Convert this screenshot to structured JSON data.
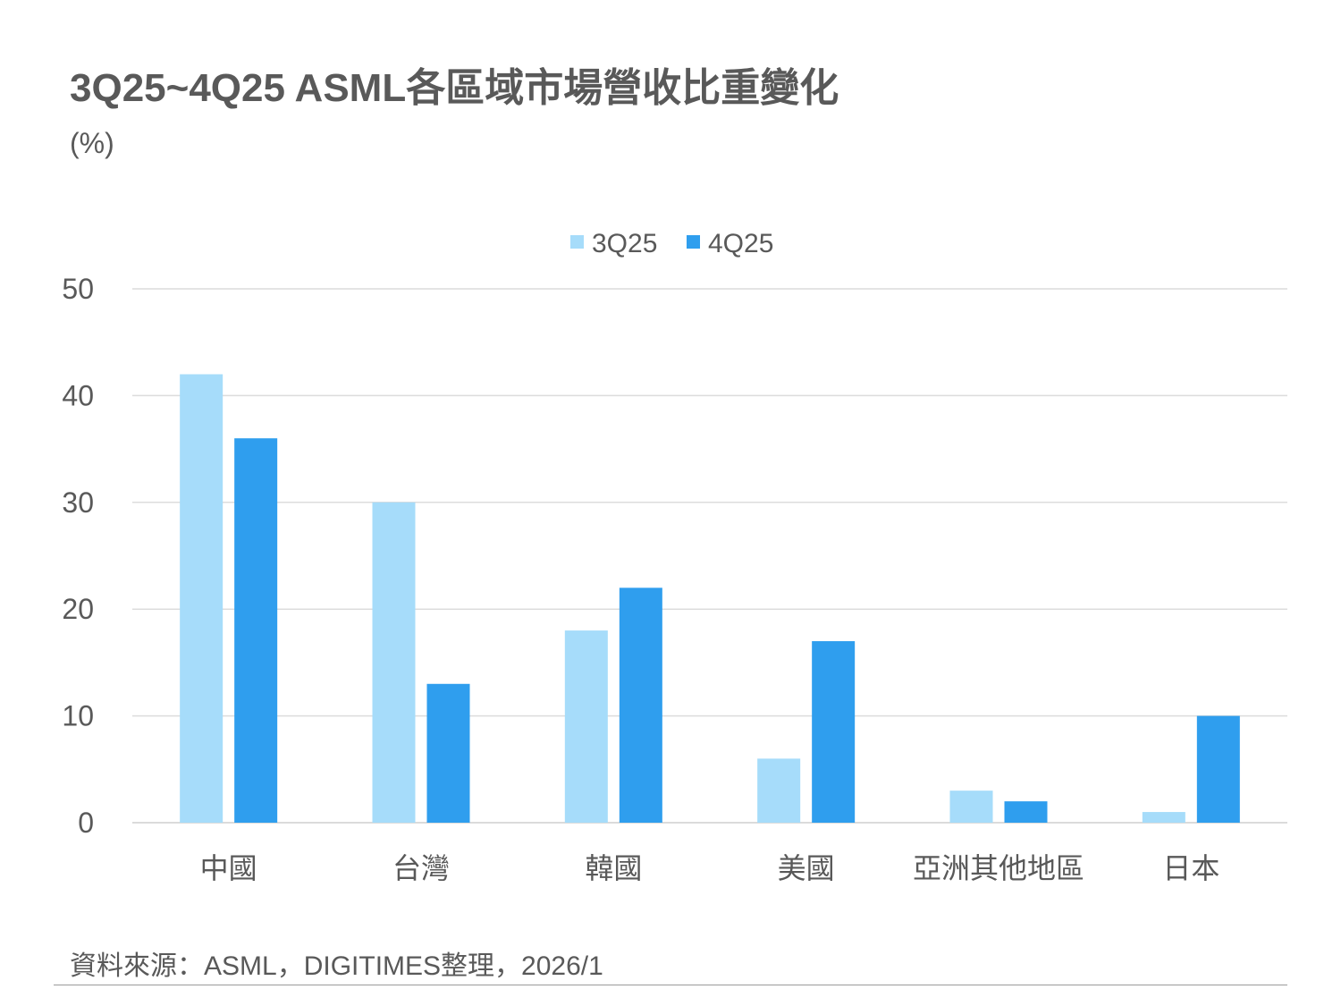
{
  "title": "3Q25~4Q25 ASML各區域市場營收比重變化",
  "unit": "(%)",
  "source": "資料來源：ASML，DIGITIMES整理，2026/1",
  "chart_data": {
    "type": "bar",
    "categories": [
      "中國",
      "台灣",
      "韓國",
      "美國",
      "亞洲其他地區",
      "日本"
    ],
    "series": [
      {
        "name": "3Q25",
        "color": "#a6dcfa",
        "values": [
          42,
          30,
          18,
          6,
          3,
          1
        ]
      },
      {
        "name": "4Q25",
        "color": "#2f9eee",
        "values": [
          36,
          13,
          22,
          17,
          2,
          10
        ]
      }
    ],
    "yticks": [
      "0",
      "10",
      "20",
      "30",
      "40",
      "50"
    ],
    "ylim": [
      0,
      50
    ],
    "grid": true,
    "legend": "top-center"
  }
}
